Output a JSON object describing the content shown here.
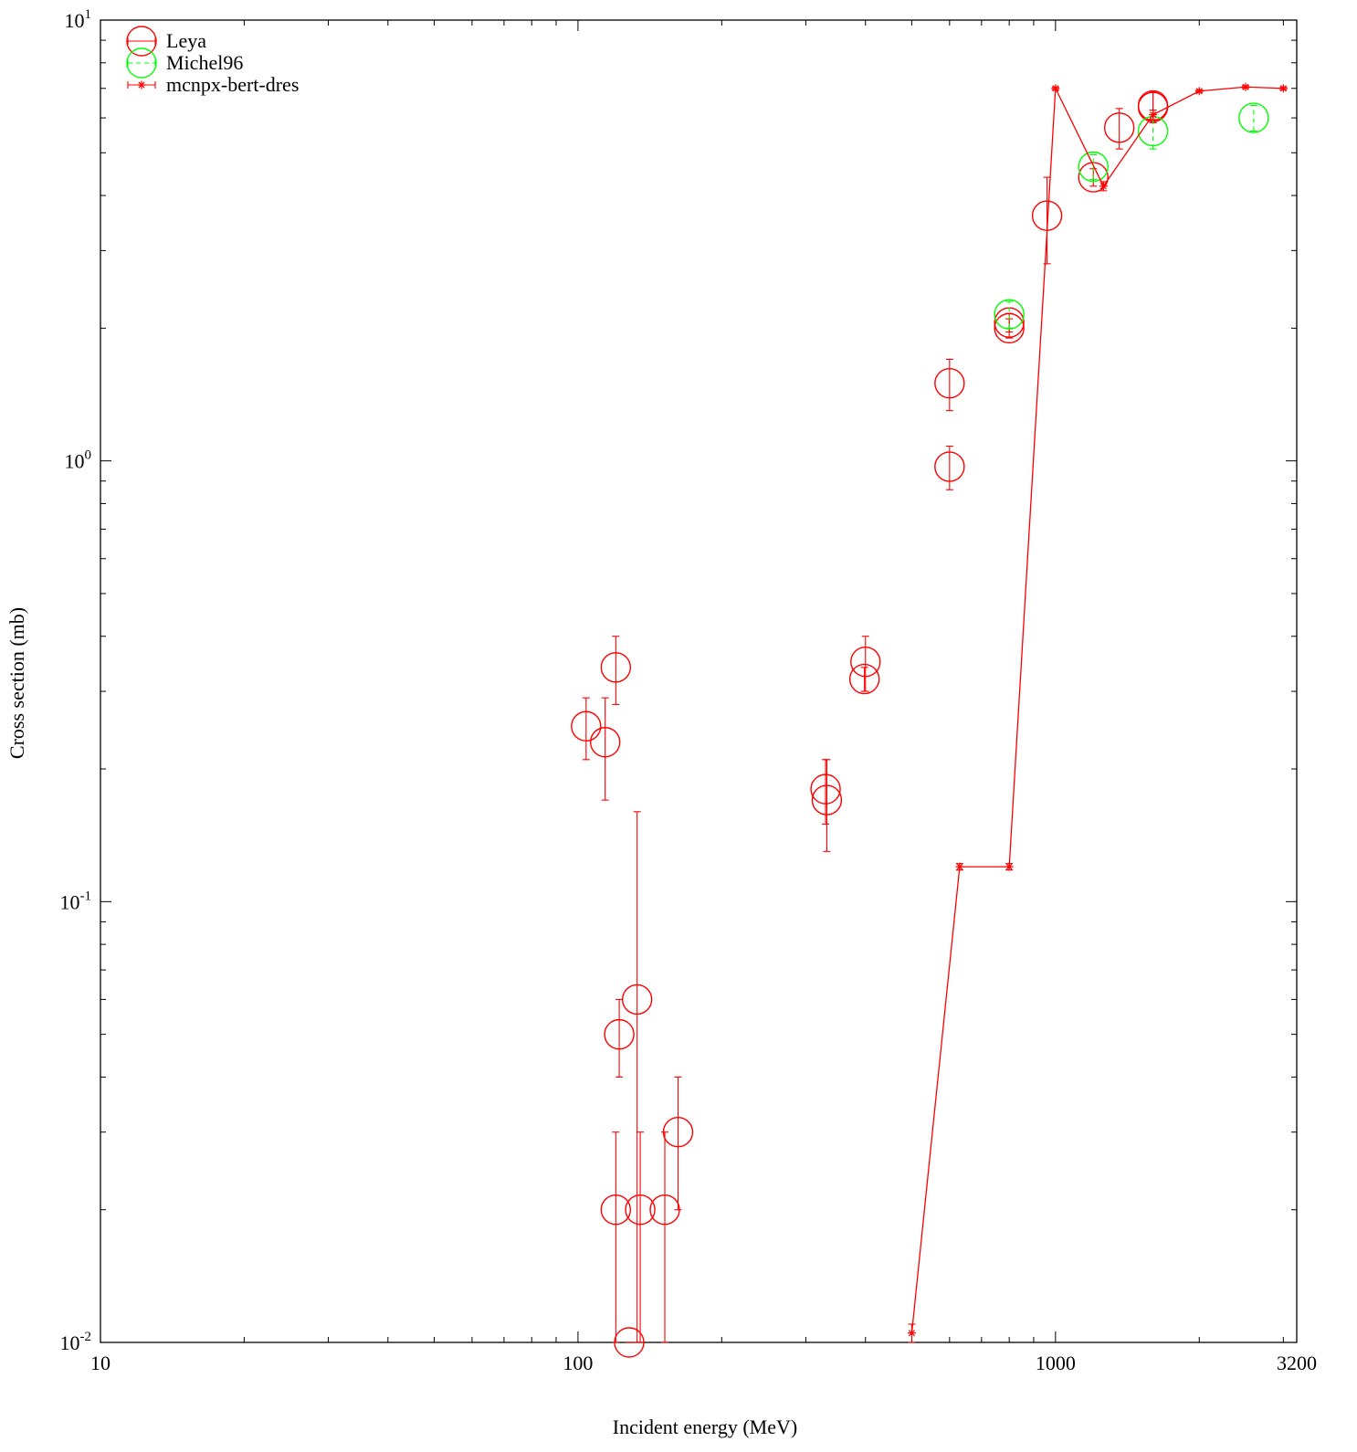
{
  "chart_data": {
    "type": "scatter",
    "title": "",
    "xlabel": "Incident energy (MeV)",
    "ylabel": "Cross section (mb)",
    "x_scale": "log",
    "y_scale": "log",
    "xlim": [
      10,
      3200
    ],
    "ylim": [
      0.01,
      10
    ],
    "x_ticks": [
      {
        "value": 10,
        "label": "10"
      },
      {
        "value": 100,
        "label": "100"
      },
      {
        "value": 1000,
        "label": "1000"
      },
      {
        "value": 3200,
        "label": "3200"
      }
    ],
    "y_ticks": [
      {
        "value": 0.01,
        "base": "10",
        "exp": "-2"
      },
      {
        "value": 0.1,
        "base": "10",
        "exp": "-1"
      },
      {
        "value": 1,
        "base": "10",
        "exp": "0"
      },
      {
        "value": 10,
        "base": "10",
        "exp": "1"
      }
    ],
    "grid": false,
    "legend_position": "top-left",
    "series": [
      {
        "name": "Leya",
        "color": "#ff0000",
        "marker": "circle",
        "line": false,
        "points": [
          {
            "x": 104,
            "y": 0.25,
            "ylo": 0.21,
            "yhi": 0.29
          },
          {
            "x": 114,
            "y": 0.23,
            "ylo": 0.17,
            "yhi": 0.29
          },
          {
            "x": 120,
            "y": 0.34,
            "ylo": 0.28,
            "yhi": 0.4
          },
          {
            "x": 122,
            "y": 0.05,
            "ylo": 0.04,
            "yhi": 0.06
          },
          {
            "x": 120,
            "y": 0.02,
            "ylo": 0.01,
            "yhi": 0.03
          },
          {
            "x": 128,
            "y": 0.01,
            "ylo": 0.01,
            "yhi": 0.01
          },
          {
            "x": 133,
            "y": 0.06,
            "ylo": 0.01,
            "yhi": 0.16
          },
          {
            "x": 135,
            "y": 0.02,
            "ylo": 0.01,
            "yhi": 0.03
          },
          {
            "x": 152,
            "y": 0.02,
            "ylo": 0.01,
            "yhi": 0.03
          },
          {
            "x": 162,
            "y": 0.03,
            "ylo": 0.02,
            "yhi": 0.04
          },
          {
            "x": 330,
            "y": 0.18,
            "ylo": 0.15,
            "yhi": 0.21
          },
          {
            "x": 332,
            "y": 0.17,
            "ylo": 0.13,
            "yhi": 0.21
          },
          {
            "x": 400,
            "y": 0.35,
            "ylo": 0.3,
            "yhi": 0.4
          },
          {
            "x": 398,
            "y": 0.32,
            "ylo": 0.3,
            "yhi": 0.34
          },
          {
            "x": 600,
            "y": 1.5,
            "ylo": 1.3,
            "yhi": 1.7
          },
          {
            "x": 600,
            "y": 0.97,
            "ylo": 0.86,
            "yhi": 1.08
          },
          {
            "x": 800,
            "y": 2.0,
            "ylo": 1.9,
            "yhi": 2.1
          },
          {
            "x": 800,
            "y": 2.06,
            "ylo": 1.96,
            "yhi": 2.16
          },
          {
            "x": 960,
            "y": 3.6,
            "ylo": 2.8,
            "yhi": 4.4
          },
          {
            "x": 1200,
            "y": 4.4,
            "ylo": 4.2,
            "yhi": 4.6
          },
          {
            "x": 1360,
            "y": 5.7,
            "ylo": 5.1,
            "yhi": 6.3
          },
          {
            "x": 1600,
            "y": 6.4,
            "ylo": 5.9,
            "yhi": 6.9
          },
          {
            "x": 1600,
            "y": 6.35,
            "ylo": 5.85,
            "yhi": 6.85
          }
        ]
      },
      {
        "name": "Michel96",
        "color": "#00ff00",
        "marker": "circle",
        "line": false,
        "points": [
          {
            "x": 800,
            "y": 2.15,
            "ylo": 2.0,
            "yhi": 2.3
          },
          {
            "x": 1200,
            "y": 4.65,
            "ylo": 4.35,
            "yhi": 4.95
          },
          {
            "x": 1600,
            "y": 5.6,
            "ylo": 5.1,
            "yhi": 6.1
          },
          {
            "x": 2600,
            "y": 6.0,
            "ylo": 5.6,
            "yhi": 6.4
          }
        ]
      },
      {
        "name": "mcnpx-bert-dres",
        "color": "#ff0000",
        "marker": "star",
        "line": true,
        "points": [
          {
            "x": 500,
            "y": 0.0105,
            "ylo": 0.01,
            "yhi": 0.011
          },
          {
            "x": 630,
            "y": 0.12,
            "ylo": 0.118,
            "yhi": 0.122
          },
          {
            "x": 800,
            "y": 0.12,
            "ylo": 0.118,
            "yhi": 0.122
          },
          {
            "x": 1000,
            "y": 7.0,
            "ylo": 6.95,
            "yhi": 7.05
          },
          {
            "x": 1260,
            "y": 4.2,
            "ylo": 4.1,
            "yhi": 4.3
          },
          {
            "x": 1600,
            "y": 6.1,
            "ylo": 5.95,
            "yhi": 6.25
          },
          {
            "x": 2000,
            "y": 6.9,
            "ylo": 6.85,
            "yhi": 6.95
          },
          {
            "x": 2500,
            "y": 7.05,
            "ylo": 7.0,
            "yhi": 7.1
          },
          {
            "x": 3000,
            "y": 7.0,
            "ylo": 6.95,
            "yhi": 7.05
          }
        ]
      }
    ]
  }
}
